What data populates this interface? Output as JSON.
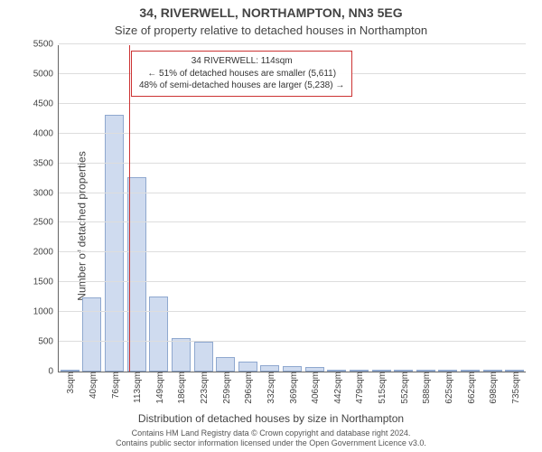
{
  "header": {
    "title_main": "34, RIVERWELL, NORTHAMPTON, NN3 5EG",
    "title_sub": "Size of property relative to detached houses in Northampton"
  },
  "chart": {
    "type": "histogram",
    "ylabel": "Number of detached properties",
    "xlabel": "Distribution of detached houses by size in Northampton",
    "ylim_max": 5500,
    "ytick_step": 500,
    "yticks": [
      0,
      500,
      1000,
      1500,
      2000,
      2500,
      3000,
      3500,
      4000,
      4500,
      5000,
      5500
    ],
    "categories": [
      "3sqm",
      "40sqm",
      "76sqm",
      "113sqm",
      "149sqm",
      "186sqm",
      "223sqm",
      "259sqm",
      "296sqm",
      "332sqm",
      "369sqm",
      "406sqm",
      "442sqm",
      "479sqm",
      "515sqm",
      "552sqm",
      "588sqm",
      "625sqm",
      "662sqm",
      "698sqm",
      "735sqm"
    ],
    "values": [
      4,
      1250,
      4320,
      3280,
      1270,
      560,
      500,
      250,
      170,
      100,
      90,
      80,
      4,
      4,
      4,
      4,
      4,
      4,
      4,
      4,
      4
    ],
    "bar_fill": "#cfdbef",
    "bar_stroke": "#8fa8cf",
    "background_color": "#ffffff",
    "grid_color": "#dddddd",
    "axis_color": "#666666",
    "marker": {
      "value_sqm": 114,
      "band_min": 3,
      "band_max": 735,
      "color": "#cc3333"
    },
    "annotation": {
      "line1": "34 RIVERWELL: 114sqm",
      "line2": "← 51% of detached houses are smaller (5,611)",
      "line3": "48% of semi-detached houses are larger (5,238) →",
      "border_color": "#cc3333"
    }
  },
  "footer": {
    "line1": "Contains HM Land Registry data © Crown copyright and database right 2024.",
    "line2": "Contains public sector information licensed under the Open Government Licence v3.0."
  }
}
